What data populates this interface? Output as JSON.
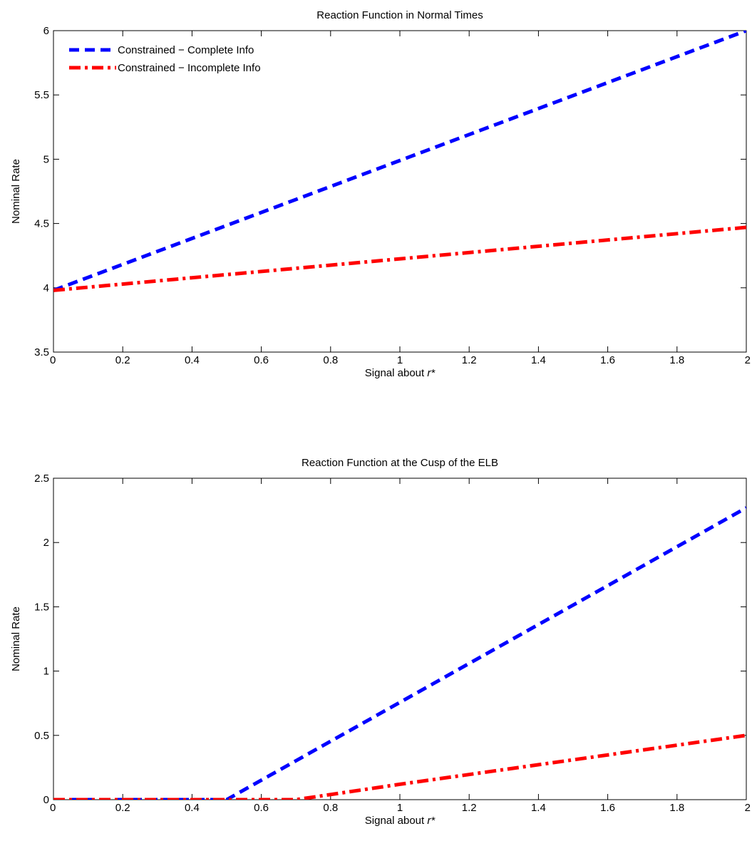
{
  "chart_data": [
    {
      "type": "line",
      "title": "Reaction Function in Normal Times",
      "xlabel_prefix": "Signal about ",
      "xlabel_symbol": "r*",
      "ylabel": "Nominal Rate",
      "xlim": [
        0,
        2
      ],
      "ylim": [
        3.5,
        6
      ],
      "xticks": [
        0,
        0.2,
        0.4,
        0.6,
        0.8,
        1,
        1.2,
        1.4,
        1.6,
        1.8,
        2
      ],
      "yticks": [
        3.5,
        4,
        4.5,
        5,
        5.5,
        6
      ],
      "legend": "top-left",
      "grid": false,
      "series": [
        {
          "name": "Constrained − Complete Info",
          "color": "#0000ff",
          "style": "dashed",
          "x": [
            0,
            2
          ],
          "y": [
            3.98,
            6.0
          ]
        },
        {
          "name": "Constrained − Incomplete Info",
          "color": "#ff0000",
          "style": "dashdot",
          "x": [
            0,
            2
          ],
          "y": [
            3.98,
            4.47
          ]
        }
      ]
    },
    {
      "type": "line",
      "title": "Reaction Function at the Cusp of the ELB",
      "xlabel_prefix": "Signal about ",
      "xlabel_symbol": "r*",
      "ylabel": "Nominal Rate",
      "xlim": [
        0,
        2
      ],
      "ylim": [
        0,
        2.5
      ],
      "xticks": [
        0,
        0.2,
        0.4,
        0.6,
        0.8,
        1,
        1.2,
        1.4,
        1.6,
        1.8,
        2
      ],
      "yticks": [
        0,
        0.5,
        1,
        1.5,
        2,
        2.5
      ],
      "grid": false,
      "series": [
        {
          "name": "Constrained − Complete Info",
          "color": "#0000ff",
          "style": "dashed",
          "x": [
            0,
            0.5,
            2
          ],
          "y": [
            0,
            0,
            2.27
          ]
        },
        {
          "name": "Constrained − Incomplete Info",
          "color": "#ff0000",
          "style": "dashdot",
          "x": [
            0,
            0.7,
            1.0,
            2
          ],
          "y": [
            0,
            0,
            0.12,
            0.5
          ]
        }
      ]
    }
  ]
}
